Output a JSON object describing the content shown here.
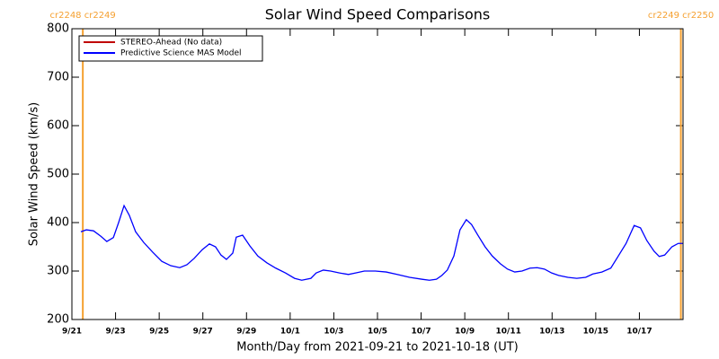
{
  "chart_data": {
    "type": "line",
    "title": "Solar Wind Speed Comparisons",
    "xlabel": "Month/Day from 2021-09-21 to 2021-10-18 (UT)",
    "ylabel": "Solar Wind Speed (km/s)",
    "xlim": [
      0,
      28
    ],
    "ylim": [
      200,
      800
    ],
    "yticks": [
      200,
      300,
      400,
      500,
      600,
      700,
      800
    ],
    "xticks": [
      {
        "value": 0,
        "label": "9/21"
      },
      {
        "value": 2,
        "label": "9/23"
      },
      {
        "value": 4,
        "label": "9/25"
      },
      {
        "value": 6,
        "label": "9/27"
      },
      {
        "value": 8,
        "label": "9/29"
      },
      {
        "value": 10,
        "label": "10/1"
      },
      {
        "value": 12,
        "label": "10/3"
      },
      {
        "value": 14,
        "label": "10/5"
      },
      {
        "value": 16,
        "label": "10/7"
      },
      {
        "value": 18,
        "label": "10/9"
      },
      {
        "value": 20,
        "label": "10/11"
      },
      {
        "value": 22,
        "label": "10/13"
      },
      {
        "value": 24,
        "label": "10/15"
      },
      {
        "value": 26,
        "label": "10/17"
      }
    ],
    "legend": "upper left",
    "annotations": [
      {
        "text": "cr2248 cr2249",
        "x": 0.5,
        "color": "#f5a030"
      },
      {
        "text": "cr2249 cr2250",
        "x": 27.9,
        "color": "#f5a030"
      }
    ],
    "series": [
      {
        "name": "STEREO-Ahead (No data)",
        "color": "#c00000",
        "x": [],
        "values": []
      },
      {
        "name": "Predictive Science MAS Model",
        "color": "#0000ff",
        "x": [
          0.41,
          0.66,
          0.99,
          1.32,
          1.6,
          1.9,
          2.14,
          2.39,
          2.63,
          2.92,
          3.29,
          3.7,
          4.12,
          4.53,
          4.94,
          5.27,
          5.6,
          5.97,
          6.3,
          6.58,
          6.83,
          7.08,
          7.37,
          7.53,
          7.82,
          8.15,
          8.52,
          8.93,
          9.34,
          9.79,
          10.2,
          10.53,
          10.95,
          11.19,
          11.52,
          11.85,
          12.26,
          12.67,
          13,
          13.4,
          13.9,
          14.4,
          14.9,
          15.47,
          16.05,
          16.38,
          16.7,
          16.95,
          17.2,
          17.5,
          17.78,
          18.07,
          18.31,
          18.6,
          18.93,
          19.26,
          19.63,
          19.96,
          20.29,
          20.62,
          20.99,
          21.32,
          21.65,
          21.98,
          22.3,
          22.72,
          23.13,
          23.54,
          23.87,
          24.28,
          24.69,
          25.02,
          25.39,
          25.76,
          26.05,
          26.34,
          26.67,
          26.91,
          27.16,
          27.49,
          27.78,
          28
        ],
        "values": [
          381,
          385,
          383,
          372,
          361,
          369,
          400,
          435,
          415,
          381,
          359,
          339,
          320,
          311,
          307,
          313,
          326,
          344,
          356,
          350,
          333,
          324,
          337,
          370,
          374,
          352,
          331,
          317,
          306,
          296,
          285,
          281,
          285,
          296,
          302,
          300,
          296,
          293,
          296,
          300,
          300,
          298,
          293,
          287,
          283,
          281,
          283,
          291,
          302,
          331,
          385,
          406,
          396,
          374,
          350,
          331,
          315,
          304,
          298,
          300,
          306,
          307,
          304,
          296,
          291,
          287,
          285,
          287,
          294,
          298,
          306,
          330,
          357,
          394,
          389,
          363,
          341,
          330,
          333,
          350,
          357,
          357
        ]
      }
    ]
  }
}
